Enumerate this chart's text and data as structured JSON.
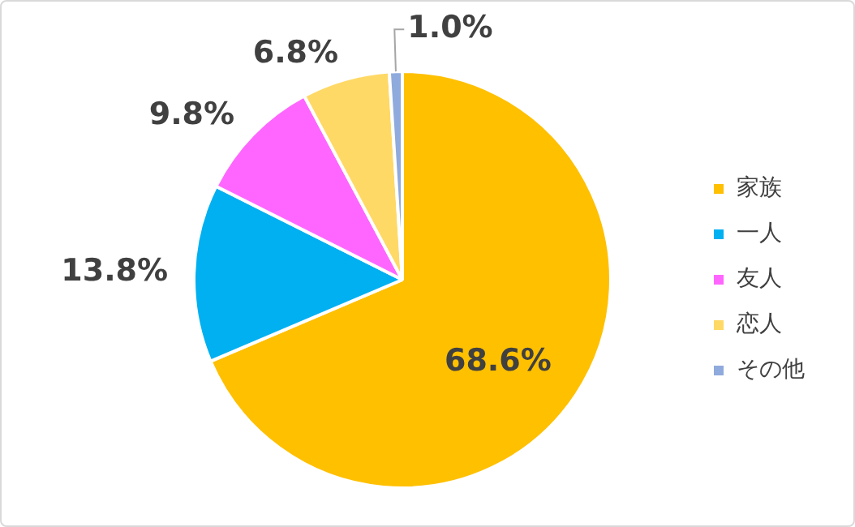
{
  "chart_data": {
    "type": "pie",
    "categories": [
      "家族",
      "一人",
      "友人",
      "恋人",
      "その他"
    ],
    "values": [
      68.6,
      13.8,
      9.8,
      6.8,
      1.0
    ],
    "colors": [
      "#ffc000",
      "#00b0f0",
      "#ff66ff",
      "#ffd966",
      "#8faadc"
    ],
    "value_labels": [
      "68.6%",
      "13.8%",
      "9.8%",
      "6.8%",
      "1.0%"
    ],
    "legend": "right"
  }
}
